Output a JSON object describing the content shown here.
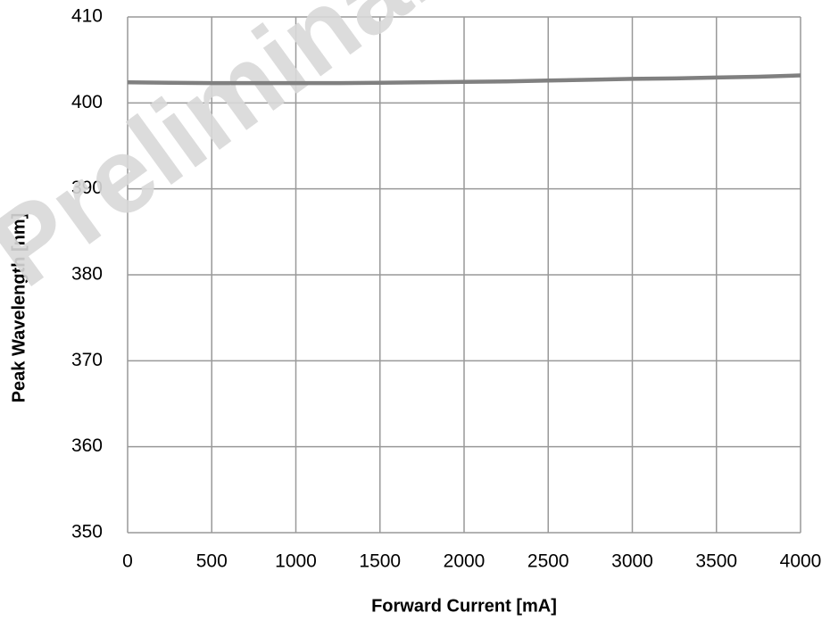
{
  "chart_data": {
    "type": "line",
    "watermark": "Preliminary",
    "x_label": "Forward Current [mA]",
    "y_label": "Peak Wavelength [nm]",
    "x": [
      0,
      250,
      500,
      750,
      1000,
      1250,
      1500,
      1750,
      2000,
      2250,
      2500,
      2750,
      3000,
      3250,
      3500,
      3750,
      4000
    ],
    "series": [
      {
        "name": null,
        "color": "#808080",
        "values": [
          402.4,
          402.35,
          402.3,
          402.3,
          402.3,
          402.3,
          402.35,
          402.4,
          402.45,
          402.5,
          402.6,
          402.7,
          402.8,
          402.85,
          402.95,
          403.05,
          403.2
        ]
      }
    ],
    "xlim": [
      0,
      4000
    ],
    "xticks": [
      0,
      500,
      1000,
      1500,
      2000,
      2500,
      3000,
      3500,
      4000
    ],
    "ylim": [
      350,
      410
    ],
    "yticks": [
      350,
      360,
      370,
      380,
      390,
      400,
      410
    ],
    "grid": true
  }
}
